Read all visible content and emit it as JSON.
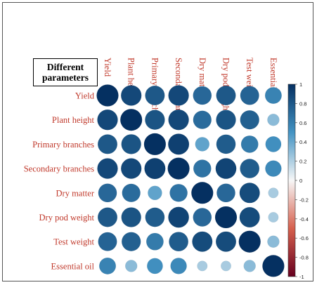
{
  "chart_data": {
    "type": "heatmap",
    "title": "",
    "corner_label": [
      "Different",
      "parameters"
    ],
    "rows": [
      "Yield",
      "Plant height",
      "Primary branches",
      "Secondary branches",
      "Dry matter",
      "Dry pod weight",
      "Test weight",
      "Essential oil"
    ],
    "columns": [
      "Yield",
      "Plant height",
      "Primary branches",
      "Secondary branches",
      "Dry matter",
      "Dry pod weight",
      "Test weight",
      "Essential oil"
    ],
    "values": [
      [
        1.0,
        0.88,
        0.8,
        0.88,
        0.72,
        0.8,
        0.74,
        0.58
      ],
      [
        0.88,
        1.0,
        0.82,
        0.88,
        0.7,
        0.82,
        0.76,
        0.3
      ],
      [
        0.8,
        0.82,
        1.0,
        0.92,
        0.42,
        0.78,
        0.62,
        0.52
      ],
      [
        0.88,
        0.88,
        0.92,
        1.0,
        0.66,
        0.9,
        0.78,
        0.55
      ],
      [
        0.72,
        0.7,
        0.42,
        0.66,
        1.0,
        0.72,
        0.86,
        0.22
      ],
      [
        0.8,
        0.82,
        0.78,
        0.9,
        0.72,
        1.0,
        0.86,
        0.22
      ],
      [
        0.74,
        0.76,
        0.62,
        0.78,
        0.86,
        0.86,
        1.0,
        0.3
      ],
      [
        0.58,
        0.3,
        0.52,
        0.55,
        0.22,
        0.22,
        0.3,
        1.0
      ]
    ],
    "colorbar": {
      "range": [
        -1,
        1
      ],
      "ticks": [
        "1",
        "0.8",
        "0.6",
        "0.4",
        "0.2",
        "0",
        "-0.2",
        "-0.4",
        "-0.6",
        "-0.8",
        "-1"
      ]
    },
    "colors": {
      "label_text": "#c0392b",
      "positive_strong": "#053061",
      "positive_mid": "#4393c3",
      "neutral": "#f7f7f7",
      "negative_mid": "#d6604d",
      "negative_strong": "#67001f"
    },
    "grid": false,
    "legend": "right"
  }
}
